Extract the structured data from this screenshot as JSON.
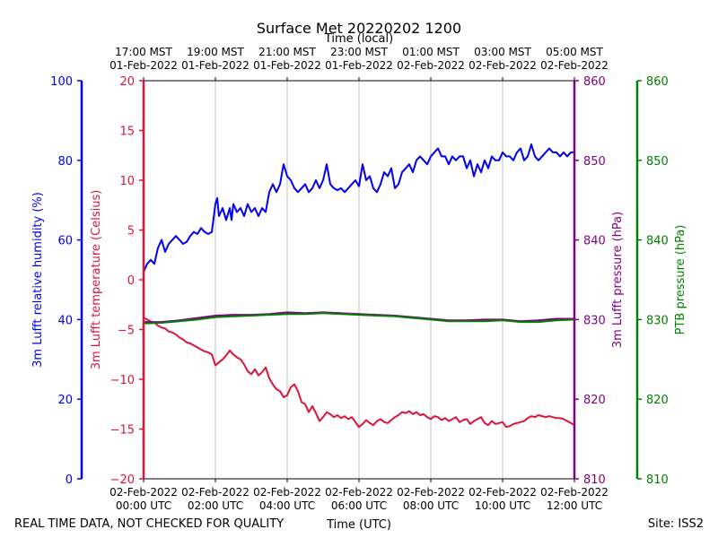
{
  "chart_data": {
    "type": "line",
    "title": "Surface Met 20220202 1200",
    "top_axis_label": "Time (local)",
    "xlabel": "Time (UTC)",
    "footer_left": "REAL TIME DATA, NOT CHECKED FOR QUALITY",
    "footer_right": "Site: ISS2",
    "x_range_hours_utc": [
      0,
      12
    ],
    "x_ticks_utc": [
      {
        "hour": 0,
        "line1": "02-Feb-2022",
        "line2": "00:00 UTC"
      },
      {
        "hour": 2,
        "line1": "02-Feb-2022",
        "line2": "02:00 UTC"
      },
      {
        "hour": 4,
        "line1": "02-Feb-2022",
        "line2": "04:00 UTC"
      },
      {
        "hour": 6,
        "line1": "02-Feb-2022",
        "line2": "06:00 UTC"
      },
      {
        "hour": 8,
        "line1": "02-Feb-2022",
        "line2": "08:00 UTC"
      },
      {
        "hour": 10,
        "line1": "02-Feb-2022",
        "line2": "10:00 UTC"
      },
      {
        "hour": 12,
        "line1": "02-Feb-2022",
        "line2": "12:00 UTC"
      }
    ],
    "x_ticks_local": [
      {
        "hour": 0,
        "line1": "17:00 MST",
        "line2": "01-Feb-2022"
      },
      {
        "hour": 2,
        "line1": "19:00 MST",
        "line2": "01-Feb-2022"
      },
      {
        "hour": 4,
        "line1": "21:00 MST",
        "line2": "01-Feb-2022"
      },
      {
        "hour": 6,
        "line1": "23:00 MST",
        "line2": "01-Feb-2022"
      },
      {
        "hour": 8,
        "line1": "01:00 MST",
        "line2": "02-Feb-2022"
      },
      {
        "hour": 10,
        "line1": "03:00 MST",
        "line2": "02-Feb-2022"
      },
      {
        "hour": 12,
        "line1": "05:00 MST",
        "line2": "02-Feb-2022"
      }
    ],
    "grid": "vertical",
    "axes": {
      "humidity": {
        "label": "3m Lufft relative humidity (%)",
        "range": [
          0,
          100
        ],
        "ticks": [
          "0",
          "20",
          "40",
          "60",
          "80",
          "100"
        ],
        "color": "#0000ee"
      },
      "temperature": {
        "label": "3m Lufft temperature (Celsius)",
        "range": [
          -20,
          20
        ],
        "ticks": [
          "−20",
          "−15",
          "−10",
          "−5",
          "0",
          "5",
          "10",
          "15",
          "20"
        ],
        "color": "#dc143c"
      },
      "pressure": {
        "label": "3m Lufft pressure (hPa)",
        "range": [
          810,
          860
        ],
        "ticks": [
          "810",
          "820",
          "830",
          "840",
          "850",
          "860"
        ],
        "color": "#800080"
      },
      "ptb": {
        "label": "PTB pressure (hPa)",
        "range": [
          810,
          860
        ],
        "ticks": [
          "810",
          "820",
          "830",
          "840",
          "850",
          "860"
        ],
        "color": "#008000"
      }
    },
    "series": [
      {
        "name": "3m Lufft relative humidity",
        "axis": "humidity",
        "color": "#0000ee",
        "x": [
          0,
          0.1,
          0.2,
          0.3,
          0.4,
          0.5,
          0.6,
          0.7,
          0.8,
          0.9,
          1.0,
          1.1,
          1.2,
          1.3,
          1.4,
          1.5,
          1.6,
          1.7,
          1.8,
          1.9,
          2.0,
          2.05,
          2.1,
          2.2,
          2.3,
          2.4,
          2.45,
          2.5,
          2.6,
          2.7,
          2.8,
          2.9,
          3.0,
          3.1,
          3.2,
          3.3,
          3.4,
          3.5,
          3.6,
          3.7,
          3.8,
          3.9,
          4.0,
          4.1,
          4.2,
          4.3,
          4.4,
          4.5,
          4.6,
          4.7,
          4.8,
          4.9,
          5.0,
          5.1,
          5.2,
          5.3,
          5.4,
          5.5,
          5.6,
          5.7,
          5.8,
          5.9,
          6.0,
          6.1,
          6.2,
          6.3,
          6.4,
          6.5,
          6.6,
          6.7,
          6.8,
          6.9,
          7.0,
          7.1,
          7.2,
          7.3,
          7.4,
          7.5,
          7.6,
          7.7,
          7.8,
          7.9,
          8.0,
          8.1,
          8.2,
          8.3,
          8.4,
          8.5,
          8.6,
          8.7,
          8.8,
          8.9,
          9.0,
          9.1,
          9.2,
          9.3,
          9.4,
          9.5,
          9.6,
          9.7,
          9.8,
          9.9,
          10.0,
          10.1,
          10.2,
          10.3,
          10.4,
          10.5,
          10.6,
          10.7,
          10.8,
          10.9,
          11.0,
          11.1,
          11.2,
          11.3,
          11.4,
          11.5,
          11.6,
          11.7,
          11.8,
          11.9,
          12.0
        ],
        "y": [
          52,
          54,
          55,
          54,
          58,
          60,
          57,
          59,
          60,
          61,
          60,
          59,
          59.5,
          61,
          62,
          61.5,
          63,
          62,
          61.5,
          62,
          69,
          70.5,
          66,
          68,
          65,
          68,
          65,
          69,
          67,
          68,
          66,
          69,
          67,
          68,
          66,
          68,
          67,
          72,
          74,
          72,
          74,
          79,
          76,
          75,
          73,
          72,
          73,
          74,
          72,
          73,
          75,
          73,
          75,
          79,
          74,
          73,
          72.5,
          73,
          72,
          73,
          74,
          75,
          73.5,
          79,
          75,
          76,
          73,
          72,
          74,
          77,
          76,
          78,
          73,
          74,
          77,
          78,
          79,
          77,
          80,
          81,
          80,
          79,
          81,
          82,
          83,
          81,
          81,
          79,
          81,
          80,
          81,
          81,
          78,
          80,
          76,
          79,
          77,
          80,
          78,
          81,
          80,
          80,
          82,
          81,
          81,
          80,
          82,
          83,
          80,
          81,
          84,
          81,
          80,
          81,
          82,
          83,
          82,
          82,
          81,
          82,
          81,
          82,
          82
        ]
      },
      {
        "name": "3m Lufft temperature",
        "axis": "temperature",
        "color": "#dc143c",
        "x": [
          0,
          0.1,
          0.2,
          0.3,
          0.4,
          0.5,
          0.6,
          0.7,
          0.8,
          0.9,
          1.0,
          1.1,
          1.2,
          1.3,
          1.4,
          1.5,
          1.6,
          1.7,
          1.8,
          1.9,
          2.0,
          2.1,
          2.2,
          2.3,
          2.4,
          2.5,
          2.6,
          2.7,
          2.8,
          2.9,
          3.0,
          3.1,
          3.2,
          3.3,
          3.4,
          3.5,
          3.6,
          3.7,
          3.8,
          3.9,
          4.0,
          4.1,
          4.2,
          4.3,
          4.4,
          4.5,
          4.6,
          4.7,
          4.8,
          4.9,
          5.0,
          5.1,
          5.2,
          5.3,
          5.4,
          5.5,
          5.6,
          5.7,
          5.8,
          5.9,
          6.0,
          6.1,
          6.2,
          6.3,
          6.4,
          6.5,
          6.6,
          6.7,
          6.8,
          6.9,
          7.0,
          7.1,
          7.2,
          7.3,
          7.4,
          7.5,
          7.6,
          7.7,
          7.8,
          7.9,
          8.0,
          8.1,
          8.2,
          8.3,
          8.4,
          8.5,
          8.6,
          8.7,
          8.8,
          8.9,
          9.0,
          9.1,
          9.2,
          9.3,
          9.4,
          9.5,
          9.6,
          9.7,
          9.8,
          9.9,
          10.0,
          10.1,
          10.2,
          10.3,
          10.4,
          10.5,
          10.6,
          10.7,
          10.8,
          10.9,
          11.0,
          11.1,
          11.2,
          11.3,
          11.4,
          11.5,
          11.6,
          11.7,
          11.8,
          11.9,
          12.0
        ],
        "y": [
          -3.8,
          -4.0,
          -4.2,
          -4.3,
          -4.6,
          -4.8,
          -4.9,
          -5.2,
          -5.3,
          -5.5,
          -5.8,
          -6.0,
          -6.3,
          -6.4,
          -6.6,
          -6.8,
          -7.0,
          -7.2,
          -7.3,
          -7.5,
          -8.6,
          -8.3,
          -8.0,
          -7.6,
          -7.1,
          -7.5,
          -7.8,
          -8.0,
          -8.5,
          -9.2,
          -9.5,
          -9.0,
          -9.6,
          -9.3,
          -8.8,
          -9.9,
          -10.5,
          -11.0,
          -11.2,
          -11.8,
          -11.6,
          -10.8,
          -10.5,
          -11.2,
          -12.3,
          -12.5,
          -13.3,
          -12.7,
          -13.4,
          -14.2,
          -13.8,
          -13.3,
          -13.5,
          -13.8,
          -13.6,
          -13.9,
          -13.7,
          -14.0,
          -13.8,
          -14.3,
          -14.8,
          -14.5,
          -14.1,
          -14.4,
          -14.6,
          -14.2,
          -14.0,
          -14.3,
          -14.4,
          -14.1,
          -13.8,
          -13.6,
          -13.3,
          -13.4,
          -13.2,
          -13.5,
          -13.3,
          -13.6,
          -13.5,
          -13.8,
          -14.0,
          -13.7,
          -13.8,
          -14.1,
          -13.9,
          -14.2,
          -14.0,
          -13.8,
          -14.3,
          -14.1,
          -14.0,
          -14.5,
          -14.2,
          -14.0,
          -13.8,
          -14.4,
          -14.6,
          -14.2,
          -14.5,
          -14.4,
          -14.3,
          -14.8,
          -14.7,
          -14.5,
          -14.4,
          -14.3,
          -14.2,
          -13.9,
          -13.7,
          -13.8,
          -13.6,
          -13.7,
          -13.8,
          -13.7,
          -13.8,
          -13.9,
          -13.9,
          -14.0,
          -14.2,
          -14.4,
          -14.6
        ]
      },
      {
        "name": "3m Lufft pressure",
        "axis": "pressure",
        "color": "#800080",
        "x": [
          0,
          0.5,
          1,
          1.5,
          2,
          2.5,
          3,
          3.5,
          4,
          4.5,
          5,
          5.5,
          6,
          6.5,
          7,
          7.5,
          8,
          8.5,
          9,
          9.5,
          10,
          10.5,
          11,
          11.5,
          12
        ],
        "y": [
          829.7,
          829.7,
          829.9,
          830.2,
          830.5,
          830.6,
          830.6,
          830.7,
          830.9,
          830.8,
          830.9,
          830.8,
          830.7,
          830.6,
          830.5,
          830.3,
          830.1,
          829.9,
          829.9,
          830.0,
          830.0,
          829.8,
          829.9,
          830.1,
          830.1
        ]
      },
      {
        "name": "PTB pressure",
        "axis": "ptb",
        "color": "#008000",
        "x": [
          0,
          0.5,
          1,
          1.5,
          2,
          2.5,
          3,
          3.5,
          4,
          4.5,
          5,
          5.5,
          6,
          6.5,
          7,
          7.5,
          8,
          8.5,
          9,
          9.5,
          10,
          10.5,
          11,
          11.5,
          12
        ],
        "y": [
          829.5,
          829.6,
          829.8,
          830.0,
          830.3,
          830.4,
          830.5,
          830.6,
          830.7,
          830.7,
          830.8,
          830.7,
          830.6,
          830.5,
          830.4,
          830.2,
          830.0,
          829.8,
          829.8,
          829.8,
          829.9,
          829.7,
          829.7,
          829.9,
          830.0
        ]
      }
    ]
  }
}
